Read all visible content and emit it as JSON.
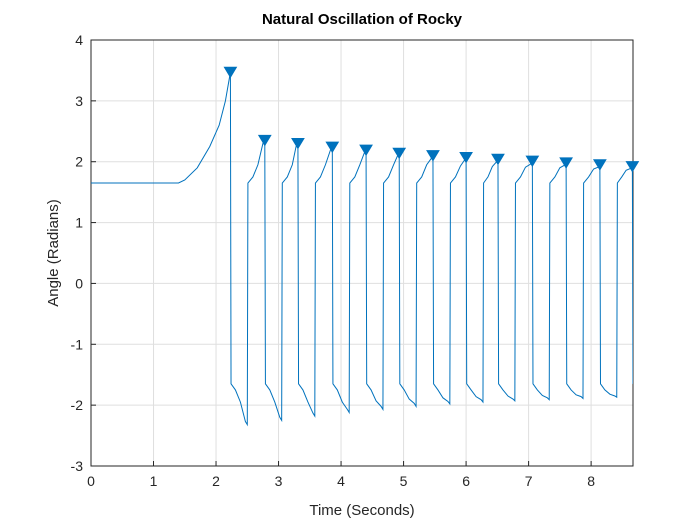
{
  "chart_data": {
    "type": "line",
    "title": "Natural Oscillation of Rocky",
    "xlabel": "Time (Seconds)",
    "ylabel": "Angle (Radians)",
    "color": "#0072bd",
    "grid": true,
    "x": [
      0,
      1.4,
      1.5,
      1.7,
      1.9,
      2.05,
      2.15,
      2.23,
      2.24,
      2.31,
      2.39,
      2.47,
      2.5,
      2.51,
      2.59,
      2.67,
      2.75,
      2.78,
      2.79,
      2.86,
      2.94,
      3.02,
      3.05,
      3.06,
      3.14,
      3.22,
      3.28,
      3.31,
      3.32,
      3.39,
      3.47,
      3.55,
      3.58,
      3.59,
      3.67,
      3.75,
      3.83,
      3.86,
      3.87,
      3.94,
      4.02,
      4.1,
      4.13,
      4.14,
      4.22,
      4.3,
      4.37,
      4.4,
      4.41,
      4.48,
      4.56,
      4.64,
      4.67,
      4.68,
      4.76,
      4.84,
      4.9,
      4.93,
      4.94,
      5.01,
      5.09,
      5.17,
      5.2,
      5.21,
      5.29,
      5.37,
      5.44,
      5.47,
      5.48,
      5.55,
      5.63,
      5.71,
      5.74,
      5.75,
      5.83,
      5.91,
      5.97,
      6.0,
      6.01,
      6.08,
      6.16,
      6.24,
      6.27,
      6.28,
      6.35,
      6.42,
      6.48,
      6.51,
      6.52,
      6.59,
      6.67,
      6.75,
      6.78,
      6.79,
      6.87,
      6.95,
      7.03,
      7.06,
      7.07,
      7.14,
      7.22,
      7.3,
      7.33,
      7.34,
      7.42,
      7.5,
      7.57,
      7.6,
      7.61,
      7.68,
      7.76,
      7.84,
      7.87,
      7.88,
      7.96,
      8.04,
      8.11,
      8.14,
      8.15,
      8.22,
      8.3,
      8.38,
      8.41,
      8.42,
      8.49,
      8.56,
      8.63,
      8.66,
      8.67
    ],
    "values": [
      1.65,
      1.65,
      1.7,
      1.9,
      2.25,
      2.6,
      3.0,
      3.47,
      -1.65,
      -1.75,
      -1.95,
      -2.27,
      -2.32,
      1.65,
      1.75,
      1.95,
      2.3,
      2.35,
      -1.65,
      -1.75,
      -1.95,
      -2.2,
      -2.25,
      1.65,
      1.75,
      1.95,
      2.25,
      2.3,
      -1.65,
      -1.75,
      -1.95,
      -2.13,
      -2.18,
      1.65,
      1.75,
      1.95,
      2.19,
      2.24,
      -1.65,
      -1.75,
      -1.95,
      -2.07,
      -2.12,
      1.65,
      1.75,
      1.95,
      2.14,
      2.19,
      -1.65,
      -1.75,
      -1.93,
      -2.02,
      -2.07,
      1.65,
      1.75,
      1.95,
      2.09,
      2.14,
      -1.65,
      -1.75,
      -1.9,
      -1.97,
      -2.02,
      1.65,
      1.75,
      1.95,
      2.05,
      2.1,
      -1.65,
      -1.75,
      -1.88,
      -1.94,
      -1.98,
      1.65,
      1.75,
      1.93,
      2.02,
      2.07,
      -1.65,
      -1.75,
      -1.86,
      -1.91,
      -1.95,
      1.65,
      1.75,
      1.92,
      1.99,
      2.04,
      -1.65,
      -1.75,
      -1.85,
      -1.9,
      -1.93,
      1.65,
      1.75,
      1.91,
      1.96,
      2.01,
      -1.65,
      -1.75,
      -1.84,
      -1.88,
      -1.91,
      1.65,
      1.75,
      1.9,
      1.94,
      1.98,
      -1.65,
      -1.75,
      -1.83,
      -1.86,
      -1.89,
      1.65,
      1.75,
      1.88,
      1.91,
      1.95,
      -1.65,
      -1.75,
      -1.82,
      -1.85,
      -1.87,
      1.65,
      1.75,
      1.86,
      1.89,
      1.92,
      -1.65
    ],
    "peaks": {
      "x": [
        2.23,
        2.78,
        3.31,
        3.86,
        4.4,
        4.93,
        5.47,
        6.0,
        6.51,
        7.06,
        7.6,
        8.14,
        8.66
      ],
      "values": [
        3.47,
        2.35,
        2.3,
        2.24,
        2.19,
        2.14,
        2.1,
        2.07,
        2.04,
        2.01,
        1.98,
        1.95,
        1.92
      ]
    },
    "xlim": [
      0,
      8.67
    ],
    "xticks": [
      0,
      1,
      2,
      3,
      4,
      5,
      6,
      7,
      8
    ],
    "ylim": [
      -3,
      4
    ],
    "yticks": [
      -3,
      -2,
      -1,
      0,
      1,
      2,
      3,
      4
    ]
  }
}
